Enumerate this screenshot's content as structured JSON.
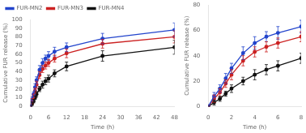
{
  "chart_data": [
    {
      "type": "line",
      "xlabel": "Time (h)",
      "ylabel": "Cumulative FUR release (%)",
      "xlim": [
        0,
        48
      ],
      "ylim": [
        0,
        100
      ],
      "xticks": [
        0,
        6,
        12,
        18,
        24,
        30,
        36,
        42,
        48
      ],
      "yticks": [
        0,
        10,
        20,
        30,
        40,
        50,
        60,
        70,
        80,
        90,
        100
      ],
      "grid": false,
      "legend": "upper left",
      "marker": "o",
      "x": [
        0,
        0.5,
        1,
        1.5,
        2,
        3,
        4,
        5,
        6,
        8,
        12,
        24,
        48
      ],
      "series": [
        {
          "name": "FUR-MN2",
          "color": "#2244cc",
          "values": [
            0,
            8,
            14,
            22,
            30,
            42,
            50,
            55,
            58,
            63,
            68,
            78,
            88
          ],
          "yerr": [
            0,
            3,
            3,
            4,
            4,
            5,
            5,
            4,
            5,
            5,
            5,
            6,
            8
          ]
        },
        {
          "name": "FUR-MN3",
          "color": "#cc2222",
          "values": [
            0,
            6,
            11,
            18,
            25,
            36,
            43,
            47,
            50,
            55,
            61,
            72,
            80
          ],
          "yerr": [
            0,
            3,
            3,
            3,
            4,
            4,
            4,
            4,
            4,
            4,
            5,
            5,
            7
          ]
        },
        {
          "name": "FUR-MN4",
          "color": "#111111",
          "values": [
            0,
            3,
            6,
            10,
            14,
            20,
            25,
            29,
            32,
            38,
            46,
            58,
            68
          ],
          "yerr": [
            0,
            2,
            2,
            2,
            3,
            3,
            4,
            4,
            4,
            4,
            5,
            6,
            8
          ]
        }
      ]
    },
    {
      "type": "line",
      "xlabel": "Time (h)",
      "ylabel": "Cumulative FUR release (%)",
      "xlim": [
        0,
        8
      ],
      "ylim": [
        0,
        80
      ],
      "xticks": [
        0,
        2,
        4,
        6,
        8
      ],
      "yticks": [
        0,
        20,
        40,
        60,
        80
      ],
      "grid": false,
      "marker": "o",
      "x": [
        0,
        0.5,
        1,
        1.5,
        2,
        3,
        4,
        5,
        6,
        8
      ],
      "series": [
        {
          "color": "#2244cc",
          "values": [
            0,
            8,
            14,
            22,
            30,
            42,
            50,
            55,
            58,
            63
          ],
          "yerr": [
            0,
            3,
            3,
            4,
            4,
            5,
            5,
            4,
            5,
            5
          ]
        },
        {
          "color": "#cc2222",
          "values": [
            0,
            6,
            11,
            18,
            25,
            36,
            43,
            47,
            50,
            55
          ],
          "yerr": [
            0,
            3,
            3,
            3,
            4,
            4,
            4,
            4,
            4,
            4
          ]
        },
        {
          "color": "#111111",
          "values": [
            0,
            3,
            6,
            10,
            14,
            20,
            25,
            29,
            32,
            38
          ],
          "yerr": [
            0,
            2,
            2,
            2,
            3,
            3,
            4,
            4,
            4,
            4
          ]
        }
      ]
    }
  ]
}
